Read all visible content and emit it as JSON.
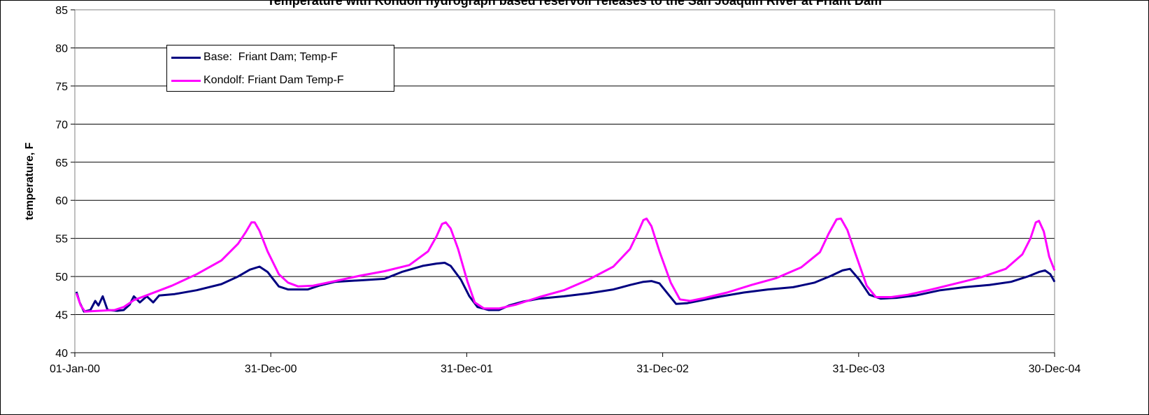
{
  "chart_data": {
    "type": "line",
    "title": "Temperature with Kondolf hydrograph based reservoir releases to the San Joaquin River at Friant Dam",
    "xlabel": "",
    "ylabel": "temperature, F",
    "ylim": [
      40,
      85
    ],
    "yticks": [
      40,
      45,
      50,
      55,
      60,
      65,
      70,
      75,
      80,
      85
    ],
    "xlim": [
      "2000-01-01",
      "2004-12-30"
    ],
    "xticks": [
      "2000-01-01",
      "2000-12-31",
      "2001-12-31",
      "2002-12-31",
      "2003-12-31",
      "2004-12-30"
    ],
    "xtick_labels": [
      "01-Jan-00",
      "31-Dec-00",
      "31-Dec-01",
      "31-Dec-02",
      "31-Dec-03",
      "30-Dec-04"
    ],
    "grid": "horizontal",
    "legend_position": "top-left",
    "series": [
      {
        "name": "Base:  Friant Dam; Temp-F",
        "color": "#000080",
        "points": [
          [
            "2000-01-04",
            48.0
          ],
          [
            "2000-01-10",
            46.6
          ],
          [
            "2000-01-18",
            45.4
          ],
          [
            "2000-01-30",
            45.6
          ],
          [
            "2000-02-08",
            46.8
          ],
          [
            "2000-02-14",
            46.2
          ],
          [
            "2000-02-22",
            47.4
          ],
          [
            "2000-03-02",
            45.6
          ],
          [
            "2000-03-20",
            45.5
          ],
          [
            "2000-04-01",
            45.6
          ],
          [
            "2000-04-12",
            46.3
          ],
          [
            "2000-04-20",
            47.4
          ],
          [
            "2000-05-01",
            46.6
          ],
          [
            "2000-05-14",
            47.4
          ],
          [
            "2000-05-26",
            46.6
          ],
          [
            "2000-06-06",
            47.5
          ],
          [
            "2000-07-05",
            47.7
          ],
          [
            "2000-08-15",
            48.2
          ],
          [
            "2000-09-30",
            49.0
          ],
          [
            "2000-10-31",
            50.0
          ],
          [
            "2000-11-22",
            50.9
          ],
          [
            "2000-12-10",
            51.3
          ],
          [
            "2000-12-25",
            50.6
          ],
          [
            "2001-01-15",
            48.7
          ],
          [
            "2001-02-01",
            48.3
          ],
          [
            "2001-02-20",
            48.3
          ],
          [
            "2001-03-10",
            48.3
          ],
          [
            "2001-03-31",
            48.8
          ],
          [
            "2001-04-30",
            49.3
          ],
          [
            "2001-06-15",
            49.5
          ],
          [
            "2001-07-31",
            49.7
          ],
          [
            "2001-09-01",
            50.6
          ],
          [
            "2001-10-10",
            51.4
          ],
          [
            "2001-11-05",
            51.7
          ],
          [
            "2001-11-20",
            51.8
          ],
          [
            "2001-12-01",
            51.4
          ],
          [
            "2001-12-20",
            49.6
          ],
          [
            "2002-01-05",
            47.4
          ],
          [
            "2002-01-20",
            46.0
          ],
          [
            "2002-02-10",
            45.6
          ],
          [
            "2002-03-01",
            45.6
          ],
          [
            "2002-03-20",
            46.2
          ],
          [
            "2002-04-15",
            46.7
          ],
          [
            "2002-05-15",
            47.1
          ],
          [
            "2002-06-30",
            47.4
          ],
          [
            "2002-08-15",
            47.8
          ],
          [
            "2002-09-30",
            48.3
          ],
          [
            "2002-11-01",
            48.9
          ],
          [
            "2002-11-25",
            49.3
          ],
          [
            "2002-12-10",
            49.4
          ],
          [
            "2002-12-25",
            49.1
          ],
          [
            "2003-01-10",
            47.7
          ],
          [
            "2003-01-25",
            46.4
          ],
          [
            "2003-02-15",
            46.5
          ],
          [
            "2003-03-15",
            46.9
          ],
          [
            "2003-04-20",
            47.4
          ],
          [
            "2003-05-31",
            47.9
          ],
          [
            "2003-07-15",
            48.3
          ],
          [
            "2003-08-31",
            48.6
          ],
          [
            "2003-10-10",
            49.2
          ],
          [
            "2003-11-10",
            50.1
          ],
          [
            "2003-12-01",
            50.8
          ],
          [
            "2003-12-15",
            51.0
          ],
          [
            "2004-01-01",
            49.6
          ],
          [
            "2004-01-20",
            47.6
          ],
          [
            "2004-02-10",
            47.1
          ],
          [
            "2004-03-10",
            47.2
          ],
          [
            "2004-04-15",
            47.5
          ],
          [
            "2004-05-31",
            48.2
          ],
          [
            "2004-07-15",
            48.6
          ],
          [
            "2004-08-31",
            48.9
          ],
          [
            "2004-10-10",
            49.3
          ],
          [
            "2004-11-10",
            50.0
          ],
          [
            "2004-12-01",
            50.6
          ],
          [
            "2004-12-12",
            50.8
          ],
          [
            "2004-12-22",
            50.3
          ],
          [
            "2004-12-30",
            49.3
          ]
        ]
      },
      {
        "name": "Kondolf: Friant Dam Temp-F",
        "color": "#ff00ff",
        "points": [
          [
            "2000-01-04",
            47.8
          ],
          [
            "2000-01-12",
            46.2
          ],
          [
            "2000-01-20",
            45.4
          ],
          [
            "2000-02-15",
            45.5
          ],
          [
            "2000-03-15",
            45.6
          ],
          [
            "2000-04-01",
            46.0
          ],
          [
            "2000-04-20",
            46.9
          ],
          [
            "2000-05-20",
            47.7
          ],
          [
            "2000-06-30",
            48.8
          ],
          [
            "2000-08-15",
            50.3
          ],
          [
            "2000-09-30",
            52.1
          ],
          [
            "2000-10-31",
            54.3
          ],
          [
            "2000-11-15",
            55.9
          ],
          [
            "2000-11-25",
            57.1
          ],
          [
            "2000-12-01",
            57.1
          ],
          [
            "2000-12-10",
            56.0
          ],
          [
            "2000-12-25",
            53.3
          ],
          [
            "2001-01-15",
            50.3
          ],
          [
            "2001-02-01",
            49.2
          ],
          [
            "2001-02-20",
            48.7
          ],
          [
            "2001-03-20",
            48.8
          ],
          [
            "2001-04-30",
            49.4
          ],
          [
            "2001-06-15",
            50.1
          ],
          [
            "2001-07-31",
            50.7
          ],
          [
            "2001-09-15",
            51.5
          ],
          [
            "2001-10-20",
            53.3
          ],
          [
            "2001-11-05",
            55.3
          ],
          [
            "2001-11-15",
            56.9
          ],
          [
            "2001-11-22",
            57.1
          ],
          [
            "2001-12-01",
            56.3
          ],
          [
            "2001-12-15",
            53.6
          ],
          [
            "2002-01-01",
            49.4
          ],
          [
            "2002-01-15",
            46.6
          ],
          [
            "2002-02-01",
            45.8
          ],
          [
            "2002-03-01",
            45.8
          ],
          [
            "2002-04-01",
            46.3
          ],
          [
            "2002-05-15",
            47.3
          ],
          [
            "2002-06-30",
            48.2
          ],
          [
            "2002-08-15",
            49.6
          ],
          [
            "2002-09-30",
            51.3
          ],
          [
            "2002-10-31",
            53.6
          ],
          [
            "2002-11-15",
            55.8
          ],
          [
            "2002-11-25",
            57.4
          ],
          [
            "2002-12-01",
            57.6
          ],
          [
            "2002-12-10",
            56.6
          ],
          [
            "2002-12-25",
            53.3
          ],
          [
            "2003-01-15",
            49.2
          ],
          [
            "2003-02-01",
            47.0
          ],
          [
            "2003-02-20",
            46.8
          ],
          [
            "2003-03-20",
            47.2
          ],
          [
            "2003-04-30",
            47.9
          ],
          [
            "2003-06-15",
            48.9
          ],
          [
            "2003-07-31",
            49.8
          ],
          [
            "2003-09-15",
            51.2
          ],
          [
            "2003-10-20",
            53.2
          ],
          [
            "2003-11-05",
            55.6
          ],
          [
            "2003-11-20",
            57.5
          ],
          [
            "2003-11-28",
            57.6
          ],
          [
            "2003-12-10",
            56.1
          ],
          [
            "2003-12-25",
            53.0
          ],
          [
            "2004-01-15",
            48.8
          ],
          [
            "2004-02-01",
            47.3
          ],
          [
            "2004-03-01",
            47.3
          ],
          [
            "2004-04-01",
            47.6
          ],
          [
            "2004-05-15",
            48.3
          ],
          [
            "2004-06-30",
            49.1
          ],
          [
            "2004-08-15",
            49.9
          ],
          [
            "2004-09-30",
            51.0
          ],
          [
            "2004-10-31",
            52.9
          ],
          [
            "2004-11-15",
            55.0
          ],
          [
            "2004-11-25",
            57.1
          ],
          [
            "2004-12-01",
            57.3
          ],
          [
            "2004-12-10",
            55.9
          ],
          [
            "2004-12-20",
            52.6
          ],
          [
            "2004-12-30",
            50.8
          ]
        ]
      }
    ]
  }
}
